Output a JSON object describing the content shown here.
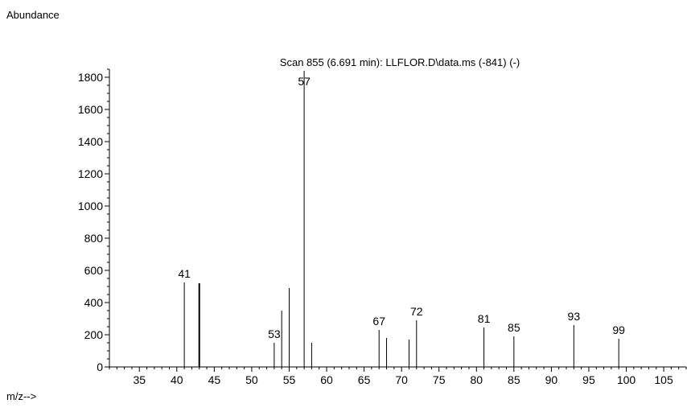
{
  "chart_data": {
    "type": "bar",
    "title": "Scan 855 (6.691 min): LLFLOR.D\\data.ms (-841) (-)",
    "ylabel": "Abundance",
    "xlabel": "m/z-->",
    "xlim": [
      31,
      108
    ],
    "ylim": [
      0,
      1850
    ],
    "xticks": [
      35,
      40,
      45,
      50,
      55,
      60,
      65,
      70,
      75,
      80,
      85,
      90,
      95,
      100,
      105
    ],
    "yticks": [
      0,
      200,
      400,
      600,
      800,
      1000,
      1200,
      1400,
      1600,
      1800
    ],
    "grid": false,
    "peaks": [
      {
        "mz": 41,
        "abundance": 525,
        "label": "41"
      },
      {
        "mz": 43,
        "abundance": 520,
        "label": ""
      },
      {
        "mz": 53,
        "abundance": 150,
        "label": "53"
      },
      {
        "mz": 54,
        "abundance": 350,
        "label": ""
      },
      {
        "mz": 55,
        "abundance": 490,
        "label": ""
      },
      {
        "mz": 57,
        "abundance": 1840,
        "label": "57"
      },
      {
        "mz": 58,
        "abundance": 150,
        "label": ""
      },
      {
        "mz": 67,
        "abundance": 230,
        "label": "67"
      },
      {
        "mz": 68,
        "abundance": 180,
        "label": ""
      },
      {
        "mz": 71,
        "abundance": 170,
        "label": ""
      },
      {
        "mz": 72,
        "abundance": 290,
        "label": "72"
      },
      {
        "mz": 81,
        "abundance": 245,
        "label": "81"
      },
      {
        "mz": 85,
        "abundance": 190,
        "label": "85"
      },
      {
        "mz": 93,
        "abundance": 260,
        "label": "93"
      },
      {
        "mz": 99,
        "abundance": 175,
        "label": "99"
      }
    ]
  }
}
